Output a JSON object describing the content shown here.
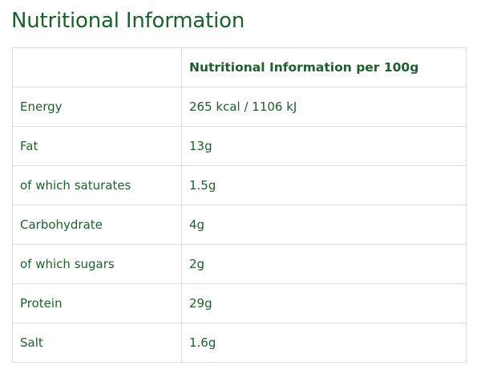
{
  "page": {
    "title": "Nutritional Information"
  },
  "table": {
    "header": [
      "",
      "Nutritional Information per 100g"
    ],
    "rows": [
      {
        "label": "Energy",
        "value": "265 kcal / 1106 kJ"
      },
      {
        "label": "Fat",
        "value": "13g"
      },
      {
        "label": "of which saturates",
        "value": "1.5g"
      },
      {
        "label": "Carbohydrate",
        "value": "4g"
      },
      {
        "label": "of which sugars",
        "value": "2g"
      },
      {
        "label": "Protein",
        "value": "29g"
      },
      {
        "label": "Salt",
        "value": "1.6g"
      }
    ]
  },
  "colors": {
    "text": "#1f5e2e",
    "border": "#dcdcdc",
    "background": "#ffffff"
  }
}
